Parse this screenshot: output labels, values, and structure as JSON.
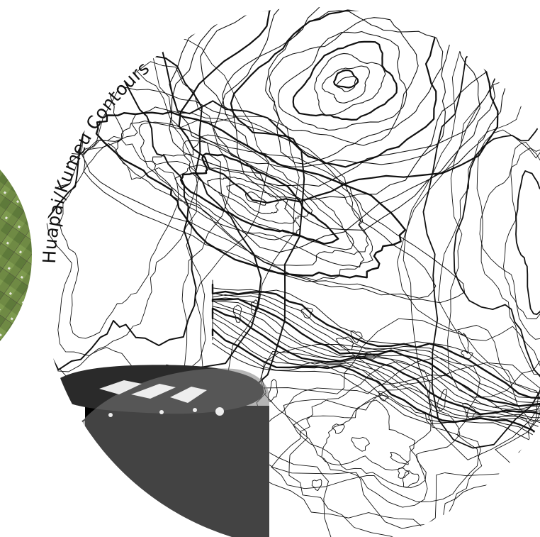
{
  "map": {
    "title": "Huapai/Kumeu Contours",
    "colors": {
      "paper": "#ffffff",
      "contour_line": "#111111",
      "aerial_green": "#6f8a44",
      "overlay_dark": "#000000",
      "overlay_grey": "#595959"
    },
    "layers": {
      "aerial_photo": "aerial-farmland",
      "contour_map": "topographic-contours",
      "building_overlay": "building-silhouette"
    }
  }
}
